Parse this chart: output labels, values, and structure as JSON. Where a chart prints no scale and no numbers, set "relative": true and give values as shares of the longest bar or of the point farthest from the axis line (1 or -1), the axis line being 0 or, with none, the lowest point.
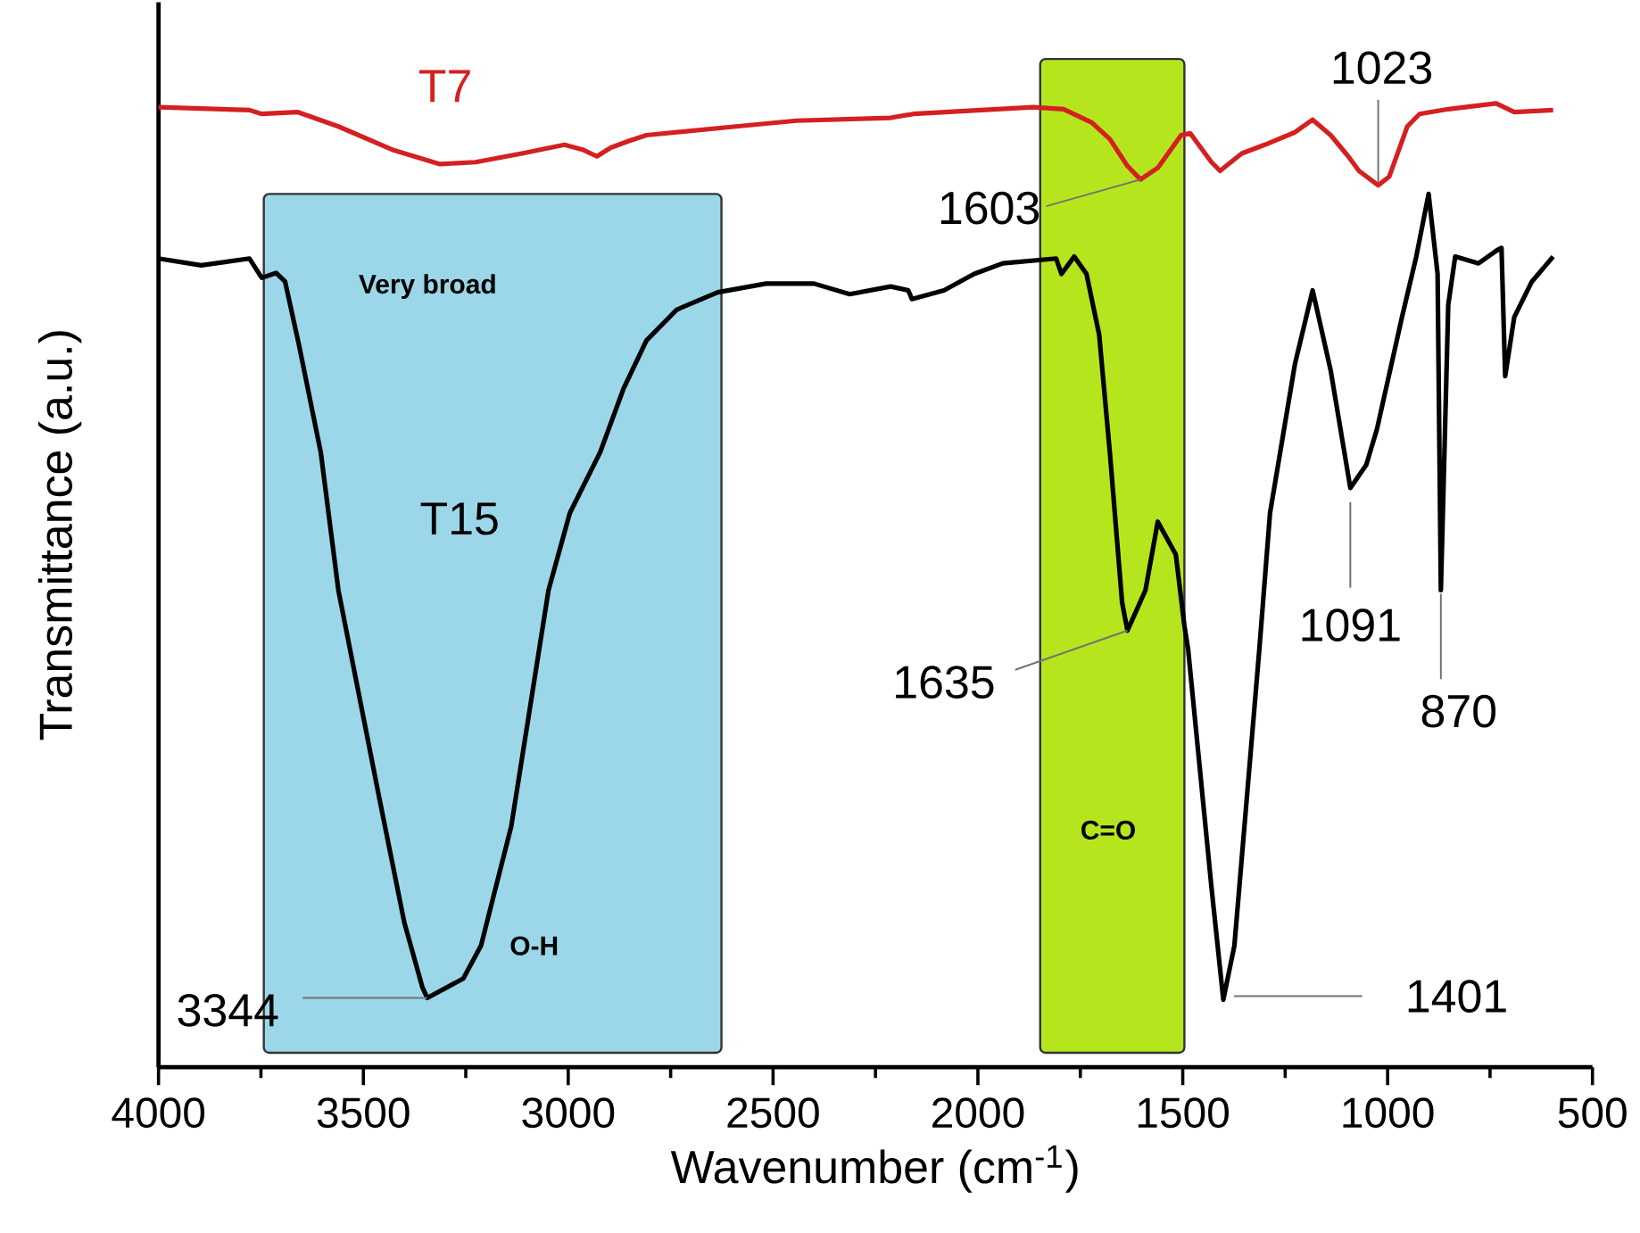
{
  "chart_data": {
    "type": "line",
    "xlabel": "Wavenumber (cm$^{-1}$)",
    "ylabel": "Transmittance (a.u.)",
    "relative": true,
    "xlim": [
      4000,
      500
    ],
    "xticks": [
      4000,
      3500,
      3000,
      2500,
      2000,
      1500,
      1000,
      500
    ],
    "series": [
      {
        "name": "T7",
        "color": "#d42020",
        "x": [
          4000,
          3778,
          3748,
          3661,
          3561,
          3430,
          3313,
          3226,
          3113,
          3009,
          2965,
          2930,
          2896,
          2852,
          2809,
          2591,
          2443,
          2213,
          2157,
          1865,
          1791,
          1722,
          1678,
          1635,
          1603,
          1561,
          1504,
          1482,
          1430,
          1409,
          1356,
          1300,
          1226,
          1183,
          1139,
          1096,
          1070,
          1023,
          996,
          952,
          922,
          852,
          735,
          691,
          596
        ],
        "values": [
          0.996,
          0.993,
          0.989,
          0.991,
          0.976,
          0.952,
          0.937,
          0.939,
          0.948,
          0.957,
          0.952,
          0.945,
          0.954,
          0.961,
          0.967,
          0.976,
          0.982,
          0.985,
          0.989,
          0.996,
          0.994,
          0.98,
          0.963,
          0.935,
          0.921,
          0.933,
          0.967,
          0.969,
          0.939,
          0.93,
          0.948,
          0.957,
          0.97,
          0.983,
          0.967,
          0.945,
          0.93,
          0.915,
          0.924,
          0.976,
          0.989,
          0.994,
          1.0,
          0.991,
          0.993
        ]
      },
      {
        "name": "T15",
        "color": "#000000",
        "x": [
          4000,
          3896,
          3778,
          3748,
          3713,
          3691,
          3657,
          3604,
          3561,
          3461,
          3400,
          3356,
          3344,
          3256,
          3213,
          3139,
          3048,
          2996,
          2922,
          2865,
          2809,
          2735,
          2635,
          2517,
          2400,
          2313,
          2213,
          2170,
          2161,
          2083,
          2009,
          1939,
          1809,
          1796,
          1765,
          1735,
          1704,
          1678,
          1648,
          1635,
          1591,
          1561,
          1517,
          1496,
          1487,
          1430,
          1401,
          1374,
          1313,
          1287,
          1226,
          1183,
          1139,
          1091,
          1052,
          1026,
          965,
          930,
          900,
          878,
          870,
          852,
          835,
          778,
          735,
          722,
          713,
          691,
          648,
          596
        ],
        "values": [
          0.839,
          0.832,
          0.839,
          0.819,
          0.824,
          0.815,
          0.749,
          0.638,
          0.495,
          0.279,
          0.15,
          0.083,
          0.072,
          0.092,
          0.126,
          0.25,
          0.495,
          0.575,
          0.638,
          0.704,
          0.754,
          0.786,
          0.804,
          0.813,
          0.813,
          0.802,
          0.81,
          0.806,
          0.797,
          0.806,
          0.823,
          0.834,
          0.839,
          0.823,
          0.841,
          0.823,
          0.76,
          0.638,
          0.482,
          0.453,
          0.495,
          0.566,
          0.532,
          0.458,
          0.434,
          0.187,
          0.07,
          0.126,
          0.434,
          0.575,
          0.73,
          0.806,
          0.723,
          0.601,
          0.625,
          0.662,
          0.778,
          0.841,
          0.906,
          0.823,
          0.495,
          0.791,
          0.841,
          0.834,
          0.847,
          0.85,
          0.717,
          0.778,
          0.815,
          0.841
        ]
      }
    ],
    "bands": [
      {
        "axis": "x",
        "from": 3743,
        "to": 2626,
        "label": "O-H",
        "color": "#9bd7e8"
      },
      {
        "axis": "x",
        "from": 1848,
        "to": 1496,
        "label": "C=O",
        "color": "#b5e61d"
      }
    ],
    "annotations": [
      "Very broad",
      {
        "text": "3344",
        "x": 3344,
        "y": 0.072
      },
      {
        "text": "1635",
        "x": 1635,
        "y": 0.453
      },
      {
        "text": "1401",
        "x": 1401,
        "y": 0.07
      },
      {
        "text": "1091",
        "x": 1091,
        "y": 0.601
      },
      {
        "text": "870",
        "x": 870,
        "y": 0.495
      },
      {
        "text": "1603",
        "x": 1603,
        "y": 0.921
      },
      {
        "text": "1023",
        "x": 1023,
        "y": 0.915
      }
    ]
  }
}
